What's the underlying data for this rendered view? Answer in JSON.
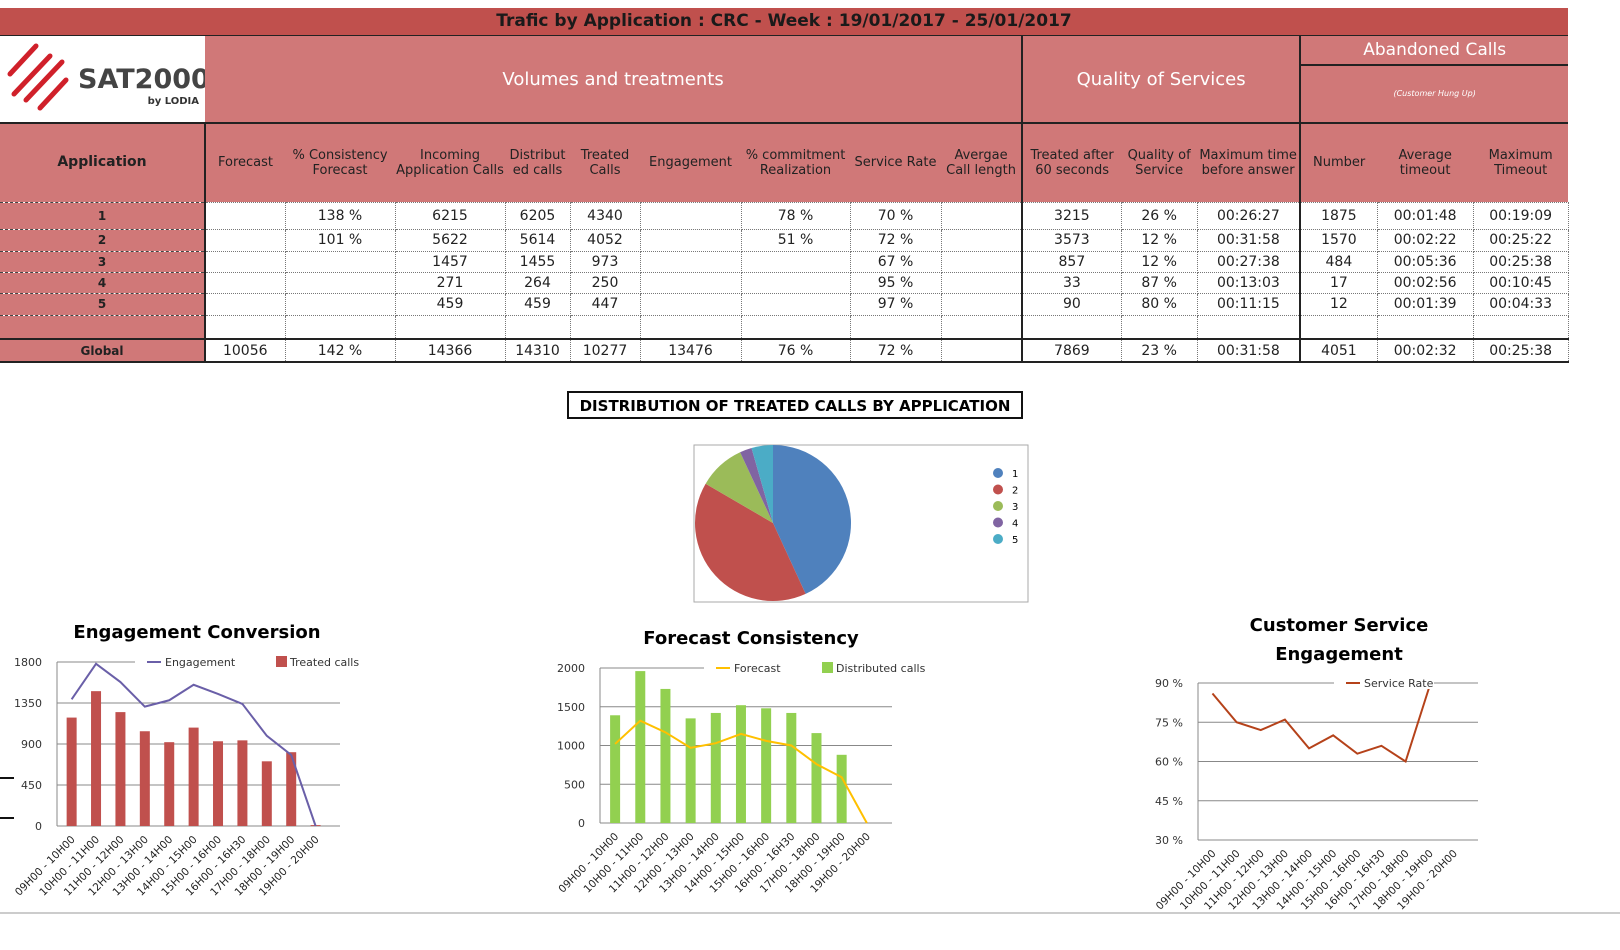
{
  "report": {
    "title": "Trafic by Application : CRC - Week : 19/01/2017 - 25/01/2017",
    "logo": {
      "brand": "SAT2000",
      "sub": "by LODIA",
      "color": "#d0202a"
    },
    "groups": {
      "volumes": "Volumes and treatments",
      "quality": "Quality of Services",
      "abandoned": "Abandoned Calls",
      "abandoned_sub": "(Customer Hung Up)"
    },
    "columns": [
      "Application",
      "Forecast",
      "% Consistency Forecast",
      "Incoming Application Calls",
      "Distribut ed calls",
      "Treated Calls",
      "Engagement",
      "% commitment Realization",
      "Service Rate",
      "Avergae Call length",
      "Treated after 60 seconds",
      "Quality of Service",
      "Maximum time before answer",
      "Number",
      "Average timeout",
      "Maximum Timeout"
    ],
    "rows": [
      [
        "1",
        "",
        "138 %",
        "6215",
        "6205",
        "4340",
        "",
        "78 %",
        "70 %",
        "",
        "3215",
        "26 %",
        "00:26:27",
        "1875",
        "00:01:48",
        "00:19:09"
      ],
      [
        "2",
        "",
        "101 %",
        "5622",
        "5614",
        "4052",
        "",
        "51 %",
        "72 %",
        "",
        "3573",
        "12 %",
        "00:31:58",
        "1570",
        "00:02:22",
        "00:25:22"
      ],
      [
        "3",
        "",
        "",
        "1457",
        "1455",
        "973",
        "",
        "",
        "67 %",
        "",
        "857",
        "12 %",
        "00:27:38",
        "484",
        "00:05:36",
        "00:25:38"
      ],
      [
        "4",
        "",
        "",
        "271",
        "264",
        "250",
        "",
        "",
        "95 %",
        "",
        "33",
        "87 %",
        "00:13:03",
        "17",
        "00:02:56",
        "00:10:45"
      ],
      [
        "5",
        "",
        "",
        "459",
        "459",
        "447",
        "",
        "",
        "97 %",
        "",
        "90",
        "80 %",
        "00:11:15",
        "12",
        "00:01:39",
        "00:04:33"
      ],
      [
        "",
        "",
        "",
        "",
        "",
        "",
        "",
        "",
        "",
        "",
        "",
        "",
        "",
        "",
        "",
        ""
      ],
      [
        "Global",
        "10056",
        "142 %",
        "14366",
        "14310",
        "10277",
        "13476",
        "76 %",
        "72 %",
        "",
        "7869",
        "23 %",
        "00:31:58",
        "4051",
        "00:02:32",
        "00:25:38"
      ]
    ],
    "colors": {
      "header_dark": "#c0504d",
      "header": "#d07878"
    }
  },
  "chart_data": [
    {
      "type": "pie",
      "title": "DISTRIBUTION OF TREATED CALLS BY APPLICATION",
      "categories": [
        "1",
        "2",
        "3",
        "4",
        "5"
      ],
      "values": [
        4340,
        4052,
        973,
        250,
        447
      ],
      "colors": [
        "#4f81bd",
        "#c0504d",
        "#9bbb59",
        "#8064a2",
        "#4bacc6"
      ],
      "legend": "right"
    },
    {
      "type": "bar",
      "title": "Engagement Conversion",
      "categories": [
        "09H00 - 10H00",
        "10H00 - 11H00",
        "11H00 - 12H00",
        "12H00 - 13H00",
        "13H00 - 14H00",
        "14H00 - 15H00",
        "15H00 - 16H00",
        "16H00 - 16H30",
        "17H00 - 18H00",
        "18H00 - 19H00",
        "19H00 - 20H00"
      ],
      "series": [
        {
          "name": "Engagement",
          "kind": "line",
          "color": "#6a5fa8",
          "values": [
            1390,
            1780,
            1580,
            1310,
            1380,
            1550,
            1450,
            1340,
            990,
            780,
            0
          ]
        },
        {
          "name": "Treated calls",
          "kind": "bar",
          "color": "#c0504d",
          "values": [
            1190,
            1480,
            1250,
            1040,
            920,
            1080,
            930,
            940,
            710,
            810,
            10
          ]
        }
      ],
      "yticks": [
        "0",
        "450",
        "900",
        "1350",
        "1800"
      ],
      "ylim": [
        0,
        1800
      ],
      "grid": true,
      "legend": "top"
    },
    {
      "type": "bar",
      "title": "Forecast Consistency",
      "categories": [
        "09H00 - 10H00",
        "10H00 - 11H00",
        "11H00 - 12H00",
        "12H00 - 13H00",
        "13H00 - 14H00",
        "14H00 - 15H00",
        "15H00 - 16H00",
        "16H00 - 16H30",
        "17H00 - 18H00",
        "18H00 - 19H00",
        "19H00 - 20H00"
      ],
      "series": [
        {
          "name": "Forecast",
          "kind": "line",
          "color": "#ffc000",
          "values": [
            1020,
            1320,
            1170,
            970,
            1030,
            1150,
            1060,
            1000,
            760,
            590,
            0
          ]
        },
        {
          "name": "Distributed calls",
          "kind": "bar",
          "color": "#92d050",
          "values": [
            1390,
            1960,
            1730,
            1350,
            1420,
            1520,
            1480,
            1420,
            1160,
            880,
            null
          ]
        }
      ],
      "yticks": [
        "0",
        "500",
        "1000",
        "1500",
        "2000"
      ],
      "ylim": [
        0,
        2000
      ],
      "grid": true,
      "legend": "top"
    },
    {
      "type": "line",
      "title": "Customer Service Engagement",
      "categories": [
        "09H00 - 10H00",
        "10H00 - 11H00",
        "11H00 - 12H00",
        "12H00 - 13H00",
        "13H00 - 14H00",
        "14H00 - 15H00",
        "15H00 - 16H00",
        "16H00 - 16H30",
        "17H00 - 18H00",
        "18H00 - 19H00",
        "19H00 - 20H00"
      ],
      "series": [
        {
          "name": "Service Rate",
          "kind": "line",
          "color": "#b5421a",
          "values": [
            86,
            75,
            72,
            76,
            65,
            70,
            63,
            66,
            60,
            89,
            null
          ]
        }
      ],
      "yticks": [
        "30 %",
        "45 %",
        "60 %",
        "75 %",
        "90 %"
      ],
      "ylim": [
        30,
        90
      ],
      "grid": true,
      "legend": "top"
    }
  ]
}
